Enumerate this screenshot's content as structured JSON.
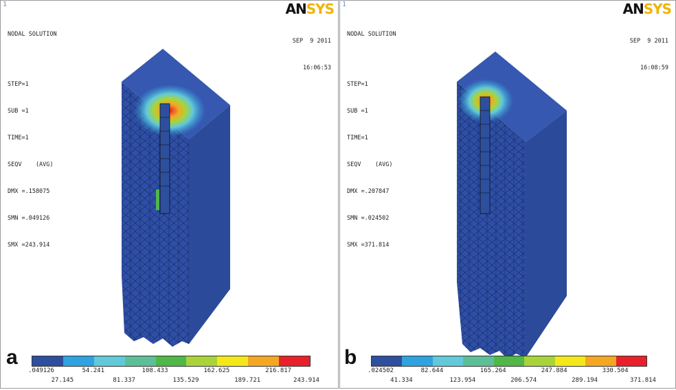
{
  "colors": {
    "contour": [
      "#2e4f9e",
      "#2fa3e0",
      "#62c9d8",
      "#5dbf98",
      "#4fb847",
      "#a8d43a",
      "#f5e81a",
      "#f5a623",
      "#e8202a"
    ],
    "background": "#ffffff"
  },
  "panels": [
    {
      "window_number": "1",
      "letter": "a",
      "logo": {
        "an": "AN",
        "sys": "SYS"
      },
      "info": {
        "title": "NODAL SOLUTION",
        "step": "STEP=1",
        "sub": "SUB =1",
        "time": "TIME=1",
        "seqv": "SEQV    (AVG)",
        "dmx": "DMX =.158075",
        "smn": "SMN =.049126",
        "smx": "SMX =243.914"
      },
      "date": "SEP  9 2011",
      "clock": "16:06:53",
      "legend_top": [
        ".049126",
        "54.241",
        "108.433",
        "162.625",
        "216.817"
      ],
      "legend_bottom": [
        "27.145",
        "81.337",
        "135.529",
        "189.721",
        "243.914"
      ]
    },
    {
      "window_number": "1",
      "letter": "b",
      "logo": {
        "an": "AN",
        "sys": "SYS"
      },
      "info": {
        "title": "NODAL SOLUTION",
        "step": "STEP=1",
        "sub": "SUB =1",
        "time": "TIME=1",
        "seqv": "SEQV    (AVG)",
        "dmx": "DMX =.207847",
        "smn": "SMN =.024502",
        "smx": "SMX =371.814"
      },
      "date": "SEP  9 2011",
      "clock": "16:08:59",
      "legend_top": [
        ".024502",
        "82.644",
        "165.264",
        "247.884",
        "330.504"
      ],
      "legend_bottom": [
        "41.334",
        "123.954",
        "206.574",
        "289.194",
        "371.814"
      ]
    }
  ]
}
